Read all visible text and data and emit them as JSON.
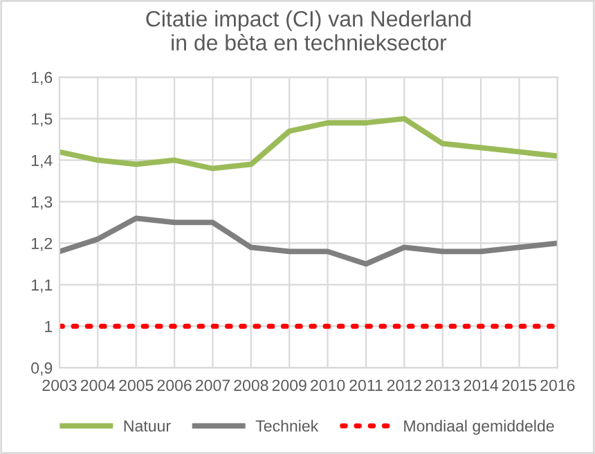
{
  "chart_data": {
    "type": "line",
    "title": "Citatie impact (CI) van Nederland\nin de bèta en technieksector",
    "x": [
      2003,
      2004,
      2005,
      2006,
      2007,
      2008,
      2009,
      2010,
      2011,
      2012,
      2013,
      2014,
      2015,
      2016
    ],
    "series": [
      {
        "name": "Natuur",
        "color": "#9bbb59",
        "line_style": "solid",
        "values": [
          1.42,
          1.4,
          1.39,
          1.4,
          1.38,
          1.39,
          1.47,
          1.49,
          1.49,
          1.5,
          1.44,
          1.43,
          1.42,
          1.41
        ]
      },
      {
        "name": "Techniek",
        "color": "#7f7f7f",
        "line_style": "solid",
        "values": [
          1.18,
          1.21,
          1.26,
          1.25,
          1.25,
          1.19,
          1.18,
          1.18,
          1.15,
          1.19,
          1.18,
          1.18,
          1.19,
          1.2
        ]
      },
      {
        "name": "Mondiaal gemiddelde",
        "color": "#ff0000",
        "line_style": "dotted",
        "values": [
          1,
          1,
          1,
          1,
          1,
          1,
          1,
          1,
          1,
          1,
          1,
          1,
          1,
          1
        ]
      }
    ],
    "xlim": [
      2003,
      2016
    ],
    "xticks": [
      2003,
      2004,
      2005,
      2006,
      2007,
      2008,
      2009,
      2010,
      2011,
      2012,
      2013,
      2014,
      2015,
      2016
    ],
    "ylim": [
      0.9,
      1.6
    ],
    "yticks": [
      {
        "value": 0.9,
        "label": "0,9"
      },
      1,
      {
        "value": 1.1,
        "label": "1,1"
      },
      {
        "value": 1.2,
        "label": "1,2"
      },
      {
        "value": 1.3,
        "label": "1,3"
      },
      {
        "value": 1.4,
        "label": "1,4"
      },
      {
        "value": 1.5,
        "label": "1,5"
      },
      {
        "value": 1.6,
        "label": "1,6"
      }
    ],
    "grid": true,
    "legend": "bottom"
  }
}
